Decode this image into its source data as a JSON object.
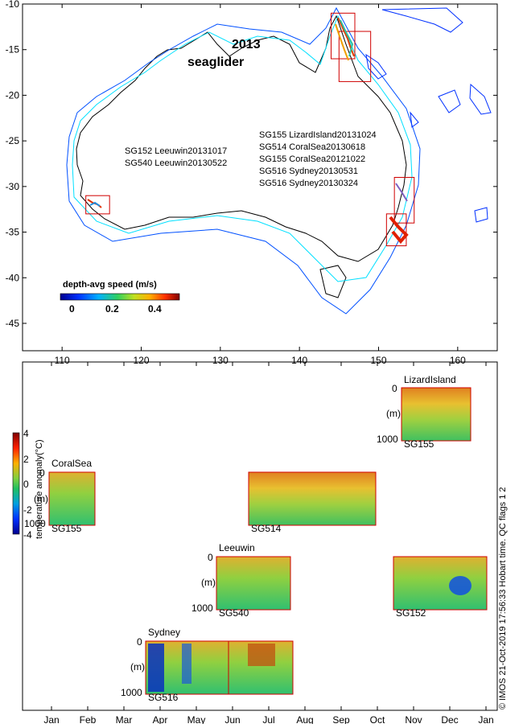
{
  "map": {
    "title_year": "2013",
    "title_name": "seaglider",
    "deployments_east": [
      "SG155 LizardIsland20131024",
      "SG514 CoralSea20130618",
      "SG155 CoralSea20121022",
      "SG516 Sydney20130531",
      "SG516 Sydney20130324"
    ],
    "deployments_west": [
      "SG152 Leeuwin20131017",
      "SG540 Leeuwin20130522"
    ],
    "colorbar": {
      "title": "depth-avg speed (m/s)",
      "ticks": [
        "0",
        "0.2",
        "0.4"
      ]
    }
  },
  "anomaly_colorbar": {
    "label": "temperature anomaly(°C)",
    "ticks": [
      "4",
      "2",
      "0",
      "-2",
      "-4"
    ]
  },
  "sections": [
    {
      "region": "LizardIsland",
      "glider": "SG155",
      "top": "0",
      "mid": "(m)",
      "bottom": "1000"
    },
    {
      "region": "CoralSea",
      "glider": "SG155",
      "top": "0",
      "mid": "(m)",
      "bottom": "1000"
    },
    {
      "region": "",
      "glider": "SG514",
      "top": "",
      "mid": "",
      "bottom": ""
    },
    {
      "region": "Leeuwin",
      "glider": "SG540",
      "top": "0",
      "mid": "(m)",
      "bottom": "1000"
    },
    {
      "region": "",
      "glider": "SG152",
      "top": "",
      "mid": "",
      "bottom": ""
    },
    {
      "region": "Sydney",
      "glider": "SG516",
      "top": "0",
      "mid": "(m)",
      "bottom": "1000"
    }
  ],
  "footer": "© IMOS 21-Oct-2019 17:56:33 Hobart time. QC flags 1  2",
  "chart_data": [
    {
      "type": "scatter",
      "x_ticks": [
        "110",
        "120",
        "130",
        "140",
        "150",
        "160"
      ],
      "y_ticks": [
        "-10",
        "-15",
        "-20",
        "-25",
        "-30",
        "-35",
        "-40",
        "-45"
      ],
      "xlim": [
        105,
        165
      ],
      "ylim": [
        -48,
        -10
      ],
      "grid": false,
      "regions": [
        {
          "name": "LizardIsland",
          "lon": [
            144,
            147
          ],
          "lat": [
            -16,
            -11
          ]
        },
        {
          "name": "CoralSea",
          "lon": [
            145,
            149
          ],
          "lat": [
            -18.5,
            -13
          ]
        },
        {
          "name": "Leeuwin",
          "lon": [
            113,
            116
          ],
          "lat": [
            -33,
            -31
          ]
        },
        {
          "name": "Sydney",
          "lon": [
            151,
            153.5
          ],
          "lat": [
            -36.5,
            -33
          ]
        },
        {
          "name": "Sydney",
          "lon": [
            152,
            154.5
          ],
          "lat": [
            -34,
            -29
          ]
        }
      ]
    },
    {
      "type": "heatmap",
      "x_ticks": [
        "Jan",
        "Feb",
        "Mar",
        "Apr",
        "May",
        "Jun",
        "Jul",
        "Aug",
        "Sep",
        "Oct",
        "Nov",
        "Dec",
        "Jan"
      ],
      "series": [
        {
          "name": "CoralSea SG155",
          "start": "2013-01-01",
          "end": "2013-02-14"
        },
        {
          "name": "LizardIsland SG155",
          "start": "2013-11-01",
          "end": "2013-12-31"
        },
        {
          "name": "SG514",
          "start": "2013-06-18",
          "end": "2013-10-01"
        },
        {
          "name": "Leeuwin SG540",
          "start": "2013-05-22",
          "end": "2013-07-10"
        },
        {
          "name": "SG152",
          "start": "2013-10-17",
          "end": "2014-01-01"
        },
        {
          "name": "Sydney SG516",
          "start": "2013-03-24",
          "end": "2013-08-01"
        }
      ]
    }
  ]
}
